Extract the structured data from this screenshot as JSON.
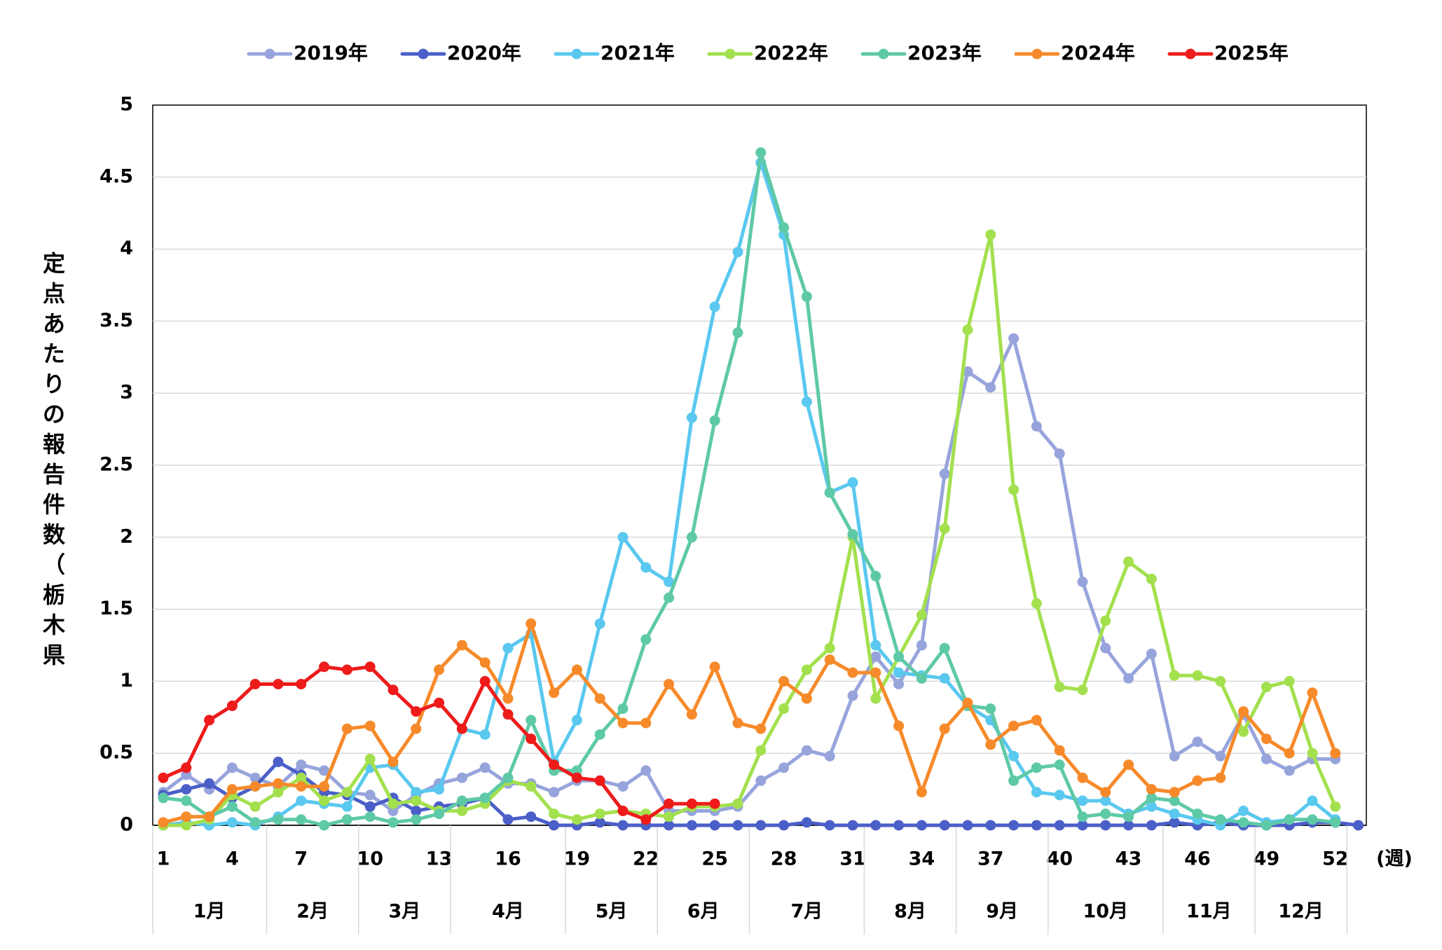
{
  "chart_data": {
    "type": "line",
    "ylabel": "定点あたりの報告件数（栃木県）",
    "ylim": [
      0,
      5
    ],
    "yticks": [
      0,
      0.5,
      1,
      1.5,
      2,
      2.5,
      3,
      3.5,
      4,
      4.5,
      5
    ],
    "ytick_labels": [
      "0",
      "0.5",
      "1",
      "1.5",
      "2",
      "2.5",
      "3",
      "3.5",
      "4",
      "4.5",
      "5"
    ],
    "xlim": [
      1,
      53
    ],
    "xtick_labels": [
      "1",
      "4",
      "7",
      "10",
      "13",
      "16",
      "19",
      "22",
      "25",
      "28",
      "31",
      "34",
      "37",
      "40",
      "43",
      "46",
      "49",
      "52"
    ],
    "xtick_weeks": [
      1,
      4,
      7,
      10,
      13,
      16,
      19,
      22,
      25,
      28,
      31,
      34,
      37,
      40,
      43,
      46,
      49,
      52
    ],
    "x_unit_label": "(週)",
    "months": [
      {
        "label": "1月",
        "start": 1,
        "end": 5
      },
      {
        "label": "2月",
        "start": 6,
        "end": 9
      },
      {
        "label": "3月",
        "start": 10,
        "end": 13
      },
      {
        "label": "4月",
        "start": 14,
        "end": 18
      },
      {
        "label": "5月",
        "start": 19,
        "end": 22
      },
      {
        "label": "6月",
        "start": 23,
        "end": 26
      },
      {
        "label": "7月",
        "start": 27,
        "end": 31
      },
      {
        "label": "8月",
        "start": 32,
        "end": 35
      },
      {
        "label": "9月",
        "start": 36,
        "end": 39
      },
      {
        "label": "10月",
        "start": 40,
        "end": 44
      },
      {
        "label": "11月",
        "start": 45,
        "end": 48
      },
      {
        "label": "12月",
        "start": 49,
        "end": 52
      }
    ],
    "grid": true,
    "legend": "top",
    "series": [
      {
        "name": "2019年",
        "color": "#97a4dc",
        "start_week": 1,
        "values": [
          0.23,
          0.35,
          0.25,
          0.4,
          0.33,
          0.27,
          0.42,
          0.38,
          0.23,
          0.21,
          0.1,
          0.21,
          0.29,
          0.33,
          0.4,
          0.29,
          0.29,
          0.23,
          0.31,
          0.31,
          0.27,
          0.38,
          0.1,
          0.1,
          0.1,
          0.13,
          0.31,
          0.4,
          0.52,
          0.48,
          0.9,
          1.17,
          0.98,
          1.25,
          2.44,
          3.15,
          3.04,
          3.38,
          2.77,
          2.58,
          1.69,
          1.23,
          1.02,
          1.19,
          0.48,
          0.58,
          0.48,
          0.77,
          0.46,
          0.38,
          0.46,
          0.46
        ]
      },
      {
        "name": "2020年",
        "color": "#4a5fc7",
        "start_week": 1,
        "values": [
          0.21,
          0.25,
          0.29,
          0.19,
          0.27,
          0.44,
          0.35,
          0.23,
          0.21,
          0.13,
          0.19,
          0.1,
          0.13,
          0.15,
          0.19,
          0.04,
          0.06,
          0.0,
          0.0,
          0.02,
          0.0,
          0.0,
          0.0,
          0.0,
          0.0,
          0.0,
          0.0,
          0.0,
          0.02,
          0.0,
          0.0,
          0.0,
          0.0,
          0.0,
          0.0,
          0.0,
          0.0,
          0.0,
          0.0,
          0.0,
          0.0,
          0.0,
          0.0,
          0.0,
          0.02,
          0.0,
          0.02,
          0.0,
          0.0,
          0.0,
          0.02,
          0.02,
          0.0
        ]
      },
      {
        "name": "2021年",
        "color": "#5ac8ef",
        "start_week": 1,
        "values": [
          0.0,
          0.02,
          0.0,
          0.02,
          0.0,
          0.06,
          0.17,
          0.15,
          0.13,
          0.4,
          0.42,
          0.23,
          0.25,
          0.67,
          0.63,
          1.23,
          1.33,
          0.44,
          0.73,
          1.4,
          2.0,
          1.79,
          1.69,
          2.83,
          3.6,
          3.98,
          4.6,
          4.1,
          2.94,
          2.31,
          2.38,
          1.25,
          1.06,
          1.04,
          1.02,
          0.83,
          0.73,
          0.48,
          0.23,
          0.21,
          0.17,
          0.17,
          0.08,
          0.13,
          0.08,
          0.04,
          0.0,
          0.1,
          0.02,
          0.04,
          0.17,
          0.04
        ]
      },
      {
        "name": "2022年",
        "color": "#a3e04e",
        "start_week": 1,
        "values": [
          0.0,
          0.0,
          0.04,
          0.21,
          0.13,
          0.23,
          0.33,
          0.17,
          0.23,
          0.46,
          0.15,
          0.17,
          0.1,
          0.1,
          0.15,
          0.31,
          0.27,
          0.08,
          0.04,
          0.08,
          0.1,
          0.08,
          0.06,
          0.13,
          0.13,
          0.15,
          0.52,
          0.81,
          1.08,
          1.23,
          2.0,
          0.88,
          1.17,
          1.46,
          2.06,
          3.44,
          4.1,
          2.33,
          1.54,
          0.96,
          0.94,
          1.42,
          1.83,
          1.71,
          1.04,
          1.04,
          1.0,
          0.65,
          0.96,
          1.0,
          0.5,
          0.13
        ]
      },
      {
        "name": "2023年",
        "color": "#5ec9a7",
        "start_week": 1,
        "values": [
          0.19,
          0.17,
          0.06,
          0.13,
          0.02,
          0.04,
          0.04,
          0.0,
          0.04,
          0.06,
          0.02,
          0.04,
          0.08,
          0.17,
          0.19,
          0.33,
          0.73,
          0.38,
          0.38,
          0.63,
          0.81,
          1.29,
          1.58,
          2.0,
          2.81,
          3.42,
          4.67,
          4.15,
          3.67,
          2.31,
          2.02,
          1.73,
          1.17,
          1.02,
          1.23,
          0.83,
          0.81,
          0.31,
          0.4,
          0.42,
          0.06,
          0.08,
          0.06,
          0.19,
          0.17,
          0.08,
          0.04,
          0.02,
          0.0,
          0.04,
          0.04,
          0.02
        ]
      },
      {
        "name": "2024年",
        "color": "#f68a2a",
        "start_week": 1,
        "values": [
          0.02,
          0.06,
          0.06,
          0.25,
          0.27,
          0.29,
          0.27,
          0.27,
          0.67,
          0.69,
          0.44,
          0.67,
          1.08,
          1.25,
          1.13,
          0.88,
          1.4,
          0.92,
          1.08,
          0.88,
          0.71,
          0.71,
          0.98,
          0.77,
          1.1,
          0.71,
          0.67,
          1.0,
          0.88,
          1.15,
          1.06,
          1.06,
          0.69,
          0.23,
          0.67,
          0.85,
          0.56,
          0.69,
          0.73,
          0.52,
          0.33,
          0.23,
          0.42,
          0.25,
          0.23,
          0.31,
          0.33,
          0.79,
          0.6,
          0.5,
          0.92,
          0.5
        ]
      },
      {
        "name": "2025年",
        "color": "#ee1b1b",
        "start_week": 1,
        "values": [
          0.33,
          0.4,
          0.73,
          0.83,
          0.98,
          0.98,
          0.98,
          1.1,
          1.08,
          1.1,
          0.94,
          0.79,
          0.85,
          0.67,
          1.0,
          0.77,
          0.6,
          0.42,
          0.33,
          0.31,
          0.1,
          0.04,
          0.15,
          0.15,
          0.15
        ]
      }
    ]
  }
}
